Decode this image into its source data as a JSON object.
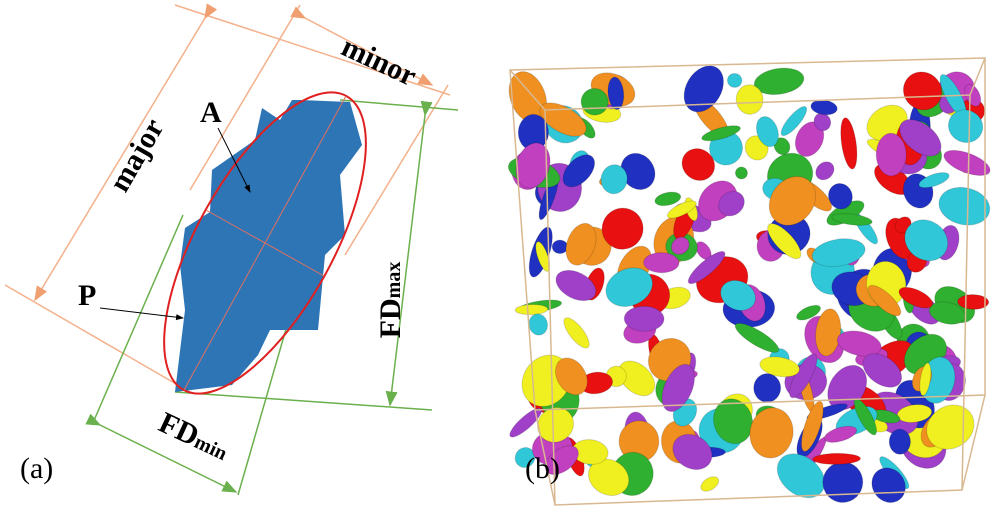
{
  "labels": {
    "minor": "minor",
    "major": "major",
    "area": "A",
    "perimeter": "P",
    "fd_max": {
      "main": "FD",
      "sub": "max"
    },
    "fd_min": {
      "main": "FD",
      "sub": "min"
    }
  },
  "panels": [
    "(a)",
    "(b)"
  ]
}
